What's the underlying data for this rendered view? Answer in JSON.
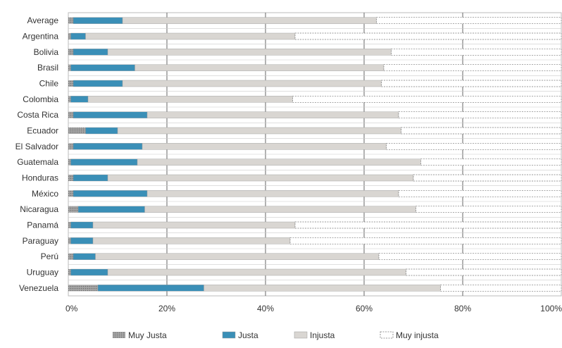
{
  "chart_data": {
    "type": "bar",
    "orientation": "horizontal",
    "stacked": true,
    "title": "",
    "xlabel": "",
    "ylabel": "",
    "xlim": [
      0,
      100
    ],
    "x_ticks": [
      "0%",
      "20%",
      "40%",
      "60%",
      "80%",
      "100%"
    ],
    "grid": true,
    "legend_position": "bottom",
    "categories": [
      "Average",
      "Argentina",
      "Bolivia",
      "Brasil",
      "Chile",
      "Colombia",
      "Costa Rica",
      "Ecuador",
      "El Salvador",
      "Guatemala",
      "Honduras",
      "México",
      "Nicaragua",
      "Panamá",
      "Paraguay",
      "Perú",
      "Uruguay",
      "Venezuela"
    ],
    "series": [
      {
        "name": "Muy Justa",
        "color": "#8c8c8c",
        "pattern": "dots",
        "values": [
          1,
          0.5,
          1,
          0.5,
          1,
          0.5,
          1,
          3.5,
          1,
          0.5,
          1,
          1,
          2,
          0.5,
          0.5,
          1,
          0.5,
          6
        ]
      },
      {
        "name": "Justa",
        "color": "#3a8fb7",
        "pattern": "solid",
        "values": [
          10,
          3,
          7,
          13,
          10,
          3.5,
          15,
          6.5,
          14,
          13.5,
          7,
          15,
          13.5,
          4.5,
          4.5,
          4.5,
          7.5,
          21.5
        ]
      },
      {
        "name": "Injusta",
        "color": "#d9d6d2",
        "pattern": "solid",
        "values": [
          51.5,
          42.5,
          57.5,
          50.5,
          52.5,
          41.5,
          51,
          57.5,
          49.5,
          57.5,
          62,
          51,
          55,
          41,
          40,
          57.5,
          60.5,
          48
        ]
      },
      {
        "name": "Muy injusta",
        "color": "#ffffff",
        "pattern": "dashed",
        "values": [
          37.5,
          54,
          34.5,
          36,
          36.5,
          54.5,
          33,
          32.5,
          35.5,
          28.5,
          30,
          33,
          29.5,
          54,
          55,
          37,
          31.5,
          24.5
        ]
      }
    ]
  }
}
